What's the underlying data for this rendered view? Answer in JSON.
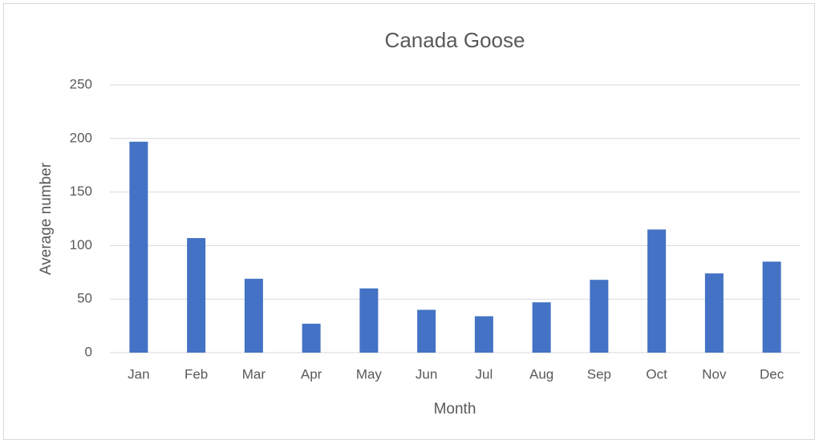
{
  "chart_data": {
    "type": "bar",
    "title": "Canada Goose",
    "x_label": "Month",
    "y_label": "Average number",
    "categories": [
      "Jan",
      "Feb",
      "Mar",
      "Apr",
      "May",
      "Jun",
      "Jul",
      "Aug",
      "Sep",
      "Oct",
      "Nov",
      "Dec"
    ],
    "values": [
      197,
      107,
      69,
      27,
      60,
      40,
      34,
      47,
      68,
      115,
      74,
      85
    ],
    "color": "#4472c4",
    "ylim": [
      0,
      250
    ],
    "yticks": [
      0,
      50,
      100,
      150,
      200,
      250
    ],
    "grid": true
  }
}
